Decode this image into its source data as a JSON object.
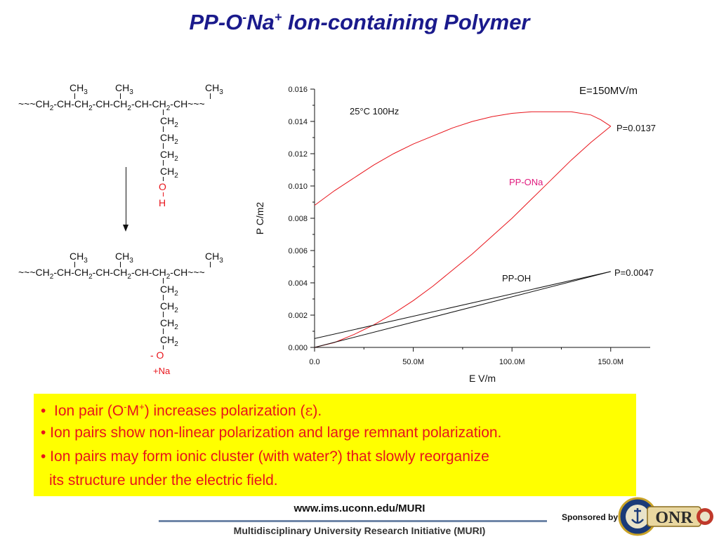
{
  "title": {
    "base": "PP-O",
    "sup1": "-",
    "mid": "Na",
    "sup2": "+",
    "rest": " Ion-containing Polymer"
  },
  "structure_top": {
    "methyls": [
      "CH3",
      "CH3",
      "CH3"
    ],
    "backbone": "~~~CH2-CH-CH2-CH-CH2-CH-CH2-CH~~~",
    "sidechain": [
      "CH2",
      "CH2",
      "CH2",
      "CH2"
    ],
    "o_label": "O",
    "h_label": "H"
  },
  "structure_bottom": {
    "methyls": [
      "CH3",
      "CH3",
      "CH3"
    ],
    "backbone": "~~~CH2-CH-CH2-CH-CH2-CH-CH2-CH~~~",
    "sidechain": [
      "CH2",
      "CH2",
      "CH2",
      "CH2"
    ],
    "o_label": "- O",
    "na_label": "+Na"
  },
  "chart_data": {
    "type": "line",
    "xlabel": "E V/m",
    "ylabel": "P C/m2",
    "xlim": [
      0,
      170000000
    ],
    "ylim": [
      0,
      0.016
    ],
    "x_ticks": [
      0,
      50000000,
      100000000,
      150000000
    ],
    "x_tick_labels": [
      "0.0",
      "50.0M",
      "100.0M",
      "150.0M"
    ],
    "y_ticks": [
      0,
      0.002,
      0.004,
      0.006,
      0.008,
      0.01,
      0.012,
      0.014,
      0.016
    ],
    "y_tick_labels": [
      "0.000",
      "0.002",
      "0.004",
      "0.006",
      "0.008",
      "0.010",
      "0.012",
      "0.014",
      "0.016"
    ],
    "annotations": [
      "E=150MV/m",
      "25°C 100Hz",
      "P=0.0137",
      "P=0.0047"
    ],
    "series": [
      {
        "name": "PP-ONa",
        "color": "#e8141b",
        "upper": {
          "x": [
            0,
            10000000,
            20000000,
            30000000,
            40000000,
            50000000,
            60000000,
            70000000,
            80000000,
            90000000,
            100000000,
            110000000,
            120000000,
            130000000,
            140000000,
            145000000,
            150000000
          ],
          "y": [
            0.0088,
            0.0097,
            0.0105,
            0.0113,
            0.012,
            0.0126,
            0.0131,
            0.0136,
            0.014,
            0.0143,
            0.0145,
            0.0146,
            0.0146,
            0.0146,
            0.0144,
            0.0141,
            0.0137
          ]
        },
        "lower": {
          "x": [
            0,
            10000000,
            20000000,
            30000000,
            40000000,
            50000000,
            60000000,
            70000000,
            80000000,
            90000000,
            100000000,
            110000000,
            120000000,
            130000000,
            140000000,
            145000000,
            150000000
          ],
          "y": [
            0.0,
            0.0003,
            0.0008,
            0.0014,
            0.0021,
            0.0029,
            0.0038,
            0.0048,
            0.0058,
            0.0069,
            0.008,
            0.0092,
            0.0104,
            0.0116,
            0.0127,
            0.0132,
            0.0137
          ]
        }
      },
      {
        "name": "PP-OH",
        "color": "#111111",
        "upper": {
          "x": [
            0,
            150000000
          ],
          "y": [
            0.00055,
            0.0047
          ]
        },
        "lower": {
          "x": [
            0,
            150000000
          ],
          "y": [
            0.0,
            0.0047
          ]
        }
      }
    ],
    "series_labels": [
      "PP-ONa",
      "PP-OH"
    ]
  },
  "bullets": [
    {
      "mark": "•",
      "a": "Ion pair (O",
      "sup1": "-",
      "b": "M",
      "sup2": "+",
      "c": ") increases polarization (",
      "sym": "ε",
      "d": ")."
    },
    {
      "text": "• Ion pairs show non-linear polarization and large remnant polarization."
    },
    {
      "text": "• Ion pairs may form ionic cluster  (with water?) that slowly reorganize"
    },
    {
      "text": "its structure under the electric field."
    }
  ],
  "footer": {
    "url": "www.ims.uconn.edu/MURI",
    "muri": "Multidisciplinary University Research Initiative (MURI)",
    "sponsored": "Sponsored by",
    "logo_text": "ONR",
    "seal_text": "DEPARTMENT OF THE NAVY"
  },
  "colors": {
    "title": "#1a1a8c",
    "red": "#e8141b",
    "highlight": "#ffff00",
    "pink_label": "#e0197d"
  }
}
